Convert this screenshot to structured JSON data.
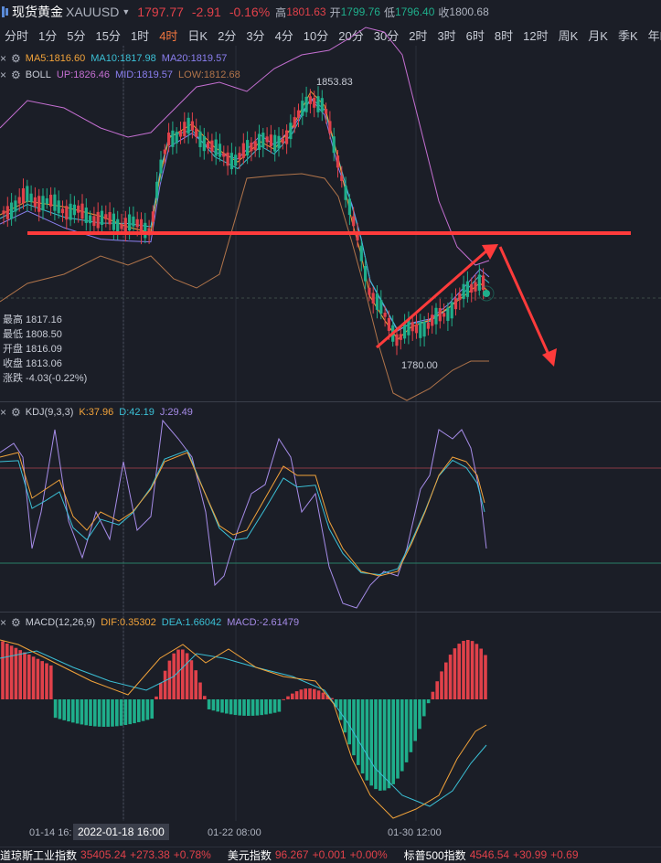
{
  "header": {
    "name": "现货黄金",
    "symbol": "XAUUSD",
    "price": "1797.77",
    "change": "-2.91",
    "change_pct": "-0.16%",
    "high_label": "高",
    "high": "1801.63",
    "open_label": "开",
    "open": "1799.76",
    "low_label": "低",
    "low": "1796.40",
    "close_label": "收",
    "close": "1800.68"
  },
  "periods": [
    "分时",
    "1分",
    "5分",
    "15分",
    "1时",
    "4时",
    "日K",
    "2分",
    "3分",
    "4分",
    "10分",
    "20分",
    "30分",
    "2时",
    "3时",
    "6时",
    "8时",
    "12时",
    "周K",
    "月K",
    "季K",
    "年K"
  ],
  "active_period": "4时",
  "ma_legend": {
    "ma5": "MA5:1816.60",
    "ma10": "MA10:1817.98",
    "ma20": "MA20:1819.57"
  },
  "boll_legend": {
    "name": "BOLL",
    "up": "UP:1826.46",
    "mid": "MID:1819.57",
    "low": "LOW:1812.68"
  },
  "annotations": {
    "high_marker": "1853.83",
    "low_marker": "1780.00"
  },
  "ohlc": {
    "high": "最高 1817.16",
    "low": "最低 1808.50",
    "open": "开盘 1816.09",
    "close": "收盘 1813.06",
    "change": "涨跌 -4.03(-0.22%)"
  },
  "kdj_legend": {
    "name": "KDJ(9,3,3)",
    "k": "K:37.96",
    "d": "D:42.19",
    "j": "J:29.49"
  },
  "macd_legend": {
    "name": "MACD(12,26,9)",
    "dif": "DIF:0.35302",
    "dea": "DEA:1.66042",
    "macd": "MACD:-2.61479"
  },
  "time_axis": {
    "t1": "01-14 16:",
    "t2": "01-22 08:00",
    "t3": "01-30 12:00",
    "crosshair": "2022-01-18 16:00"
  },
  "ticker": [
    {
      "name": "道琼斯工业指数",
      "value": "35405.24",
      "change": "+273.38",
      "pct": "+0.78%"
    },
    {
      "name": "美元指数",
      "value": "96.267",
      "change": "+0.001",
      "pct": "+0.00%"
    },
    {
      "name": "标普500指数",
      "value": "4546.54",
      "change": "+30.99",
      "pct": "+0.69"
    }
  ],
  "colors": {
    "up": "#e0414a",
    "down": "#1fae8b",
    "ma5": "#f2a33a",
    "ma10": "#3bc0d6",
    "ma20": "#8b7ff0",
    "boll_up": "#c46fd1",
    "boll_low": "#b0744a",
    "k": "#f2a33a",
    "d": "#3bc0d6",
    "j": "#a68ce8",
    "annotation": "#ff3b3b"
  }
}
